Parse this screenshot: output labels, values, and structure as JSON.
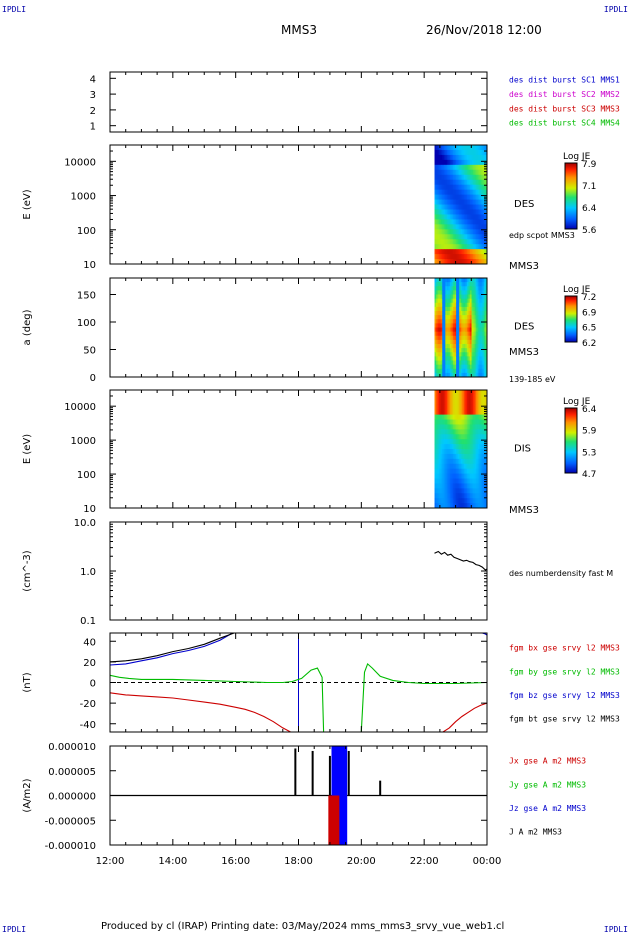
{
  "header": {
    "corner_left": "IPDLI",
    "corner_right": "IPDLI",
    "spacecraft": "MMS3",
    "date": "26/Nov/2018 12:00"
  },
  "footer": {
    "text": "Produced by cl (IRAP)   Printing date: 03/May/2024   mms_mms3_srvy_vue_web1.cl",
    "corner_left": "IPDLI",
    "corner_right": "IPDLI"
  },
  "chart_data": [
    {
      "type": "line",
      "id": "sc-availability",
      "ylabel": "",
      "ylim": [
        0.6,
        4.4
      ],
      "yticks": [
        1,
        2,
        3,
        4
      ],
      "ytick_labels": [
        "1",
        "2",
        "3",
        "4"
      ],
      "xlim_hours": [
        12,
        24
      ],
      "legend": [
        {
          "text": "des dist burst SC1 MMS1",
          "color": "#0000cc"
        },
        {
          "text": "des dist burst SC2 MMS2",
          "color": "#cc00cc"
        },
        {
          "text": "des dist burst SC3 MMS3",
          "color": "#cc0000"
        },
        {
          "text": "des dist burst SC4 MMS4",
          "color": "#00bb00"
        }
      ],
      "series": []
    },
    {
      "type": "heatmap",
      "id": "des-energy",
      "ylabel": "E (eV)",
      "yscale": "log",
      "ylim": [
        10,
        30000
      ],
      "yticks": [
        10,
        100,
        1000,
        10000
      ],
      "ytick_labels": [
        "10",
        "100",
        "1000",
        "10000"
      ],
      "data_start_hour": 22.33,
      "data_end_hour": 24.0,
      "side_labels": [
        "DES",
        "edp scpot MMS3",
        "MMS3"
      ],
      "colorbar": {
        "title": "Log JE",
        "ticks": [
          "7.9",
          "7.1",
          "6.4",
          "5.6"
        ],
        "min": 5.6,
        "max": 7.9
      }
    },
    {
      "type": "heatmap",
      "id": "des-pitch",
      "ylabel": "a (deg)",
      "ylim": [
        0,
        180
      ],
      "yticks": [
        0,
        50,
        100,
        150
      ],
      "ytick_labels": [
        "0",
        "50",
        "100",
        "150"
      ],
      "data_start_hour": 22.33,
      "data_end_hour": 24.0,
      "side_labels": [
        "DES",
        "MMS3",
        "139-185 eV"
      ],
      "colorbar": {
        "title": "Log JE",
        "ticks": [
          "7.2",
          "6.9",
          "6.5",
          "6.2"
        ],
        "min": 6.2,
        "max": 7.2
      }
    },
    {
      "type": "heatmap",
      "id": "dis-energy",
      "ylabel": "E (eV)",
      "yscale": "log",
      "ylim": [
        10,
        30000
      ],
      "yticks": [
        10,
        100,
        1000,
        10000
      ],
      "ytick_labels": [
        "10",
        "100",
        "1000",
        "10000"
      ],
      "data_start_hour": 22.33,
      "data_end_hour": 24.0,
      "side_labels": [
        "DIS",
        "MMS3"
      ],
      "colorbar": {
        "title": "Log JE",
        "ticks": [
          "6.4",
          "5.9",
          "5.3",
          "4.7"
        ],
        "min": 4.7,
        "max": 6.4
      }
    },
    {
      "type": "line",
      "id": "density",
      "ylabel": "(cm^-3)",
      "yscale": "log",
      "ylim": [
        0.1,
        10
      ],
      "yticks": [
        0.1,
        1,
        10
      ],
      "ytick_labels": [
        "0.1",
        "1.0",
        "10.0"
      ],
      "side_labels": [
        "des numberdensity fast M"
      ],
      "series": [
        {
          "name": "des numberdensity fast M",
          "color": "#000000",
          "x": [
            22.33,
            22.45,
            22.55,
            22.65,
            22.75,
            22.85,
            22.95,
            23.05,
            23.15,
            23.25,
            23.35,
            23.45,
            23.55,
            23.65,
            23.75,
            23.85,
            23.95,
            24.0
          ],
          "y": [
            2.3,
            2.5,
            2.2,
            2.4,
            2.1,
            2.2,
            1.9,
            1.8,
            1.7,
            1.6,
            1.65,
            1.55,
            1.5,
            1.35,
            1.3,
            1.2,
            1.05,
            1.1
          ]
        }
      ]
    },
    {
      "type": "line",
      "id": "magnetic-field",
      "ylabel": "(nT)",
      "ylim": [
        -48,
        48
      ],
      "yticks": [
        -40,
        -20,
        0,
        20,
        40
      ],
      "ytick_labels": [
        "-40",
        "-20",
        "0",
        "20",
        "40"
      ],
      "legend": [
        {
          "text": "fgm bx gse srvy l2 MMS3",
          "color": "#cc0000"
        },
        {
          "text": "fgm by gse srvy l2 MMS3",
          "color": "#00bb00"
        },
        {
          "text": "fgm bz gse srvy l2 MMS3",
          "color": "#0000cc"
        },
        {
          "text": "fgm bt gse srvy l2 MMS3",
          "color": "#000000"
        }
      ],
      "series": [
        {
          "name": "fgm bx gse srvy l2 MMS3",
          "color": "#cc0000",
          "x": [
            12.0,
            12.5,
            13.0,
            13.5,
            14.0,
            14.5,
            15.0,
            15.5,
            16.0,
            16.3,
            16.6,
            16.9,
            17.2,
            17.5,
            17.75,
            22.6,
            22.8,
            23.0,
            23.2,
            23.4,
            23.6,
            23.8,
            24.0
          ],
          "y": [
            -10,
            -12,
            -13,
            -14,
            -15,
            -17,
            -19,
            -21,
            -24,
            -26,
            -29,
            -33,
            -38,
            -44,
            -49,
            -49,
            -44,
            -38,
            -33,
            -29,
            -25,
            -22,
            -20
          ]
        },
        {
          "name": "fgm by gse srvy l2 MMS3",
          "color": "#00bb00",
          "x": [
            12.0,
            12.3,
            12.6,
            13.0,
            14.0,
            15.0,
            16.0,
            17.0,
            17.5,
            17.8,
            18.1,
            18.4,
            18.6,
            18.75,
            18.8,
            20.0,
            20.1,
            20.2,
            20.35,
            20.6,
            21.0,
            21.5,
            22.0,
            23.0,
            24.0
          ],
          "y": [
            7,
            5,
            4,
            3,
            3,
            2,
            1,
            0,
            0,
            1,
            4,
            12,
            14,
            5,
            -49,
            -49,
            10,
            18,
            14,
            6,
            2,
            0,
            -1,
            -1,
            0
          ]
        },
        {
          "name": "fgm bz gse srvy l2 MMS3",
          "color": "#0000cc",
          "x": [
            12.0,
            12.5,
            13.0,
            13.5,
            14.0,
            14.5,
            15.0,
            15.5,
            15.9,
            23.85,
            23.95,
            24.0
          ],
          "y": [
            17,
            18,
            21,
            24,
            28,
            31,
            35,
            41,
            48,
            48,
            47,
            46
          ]
        },
        {
          "name": "fgm bt gse srvy l2 MMS3",
          "color": "#000000",
          "x": [
            12.0,
            12.5,
            13.0,
            13.5,
            14.0,
            14.5,
            15.0,
            15.5,
            15.95
          ],
          "y": [
            20,
            21,
            23,
            26,
            30,
            33,
            37,
            43,
            49
          ]
        }
      ]
    },
    {
      "type": "line",
      "id": "current-density",
      "ylabel": "(A/m2)",
      "ylim": [
        -1e-05,
        1e-05
      ],
      "yticks": [
        -1e-05,
        -5e-06,
        0,
        5e-06,
        1e-05
      ],
      "ytick_labels": [
        "-0.000010",
        "-0.000005",
        "0.000000",
        "0.000005",
        "0.000010"
      ],
      "legend": [
        {
          "text": "Jx gse A m2 MMS3",
          "color": "#cc0000"
        },
        {
          "text": "Jy gse A m2 MMS3",
          "color": "#00bb00"
        },
        {
          "text": "Jz gse A m2 MMS3",
          "color": "#0000cc"
        },
        {
          "text": "J A m2 MMS3",
          "color": "#000000"
        }
      ],
      "series": []
    }
  ],
  "x_axis": {
    "ticks": [
      12,
      14,
      16,
      18,
      20,
      22,
      24
    ],
    "tick_labels": [
      "12:00",
      "14:00",
      "16:00",
      "18:00",
      "20:00",
      "22:00",
      "00:00"
    ]
  }
}
